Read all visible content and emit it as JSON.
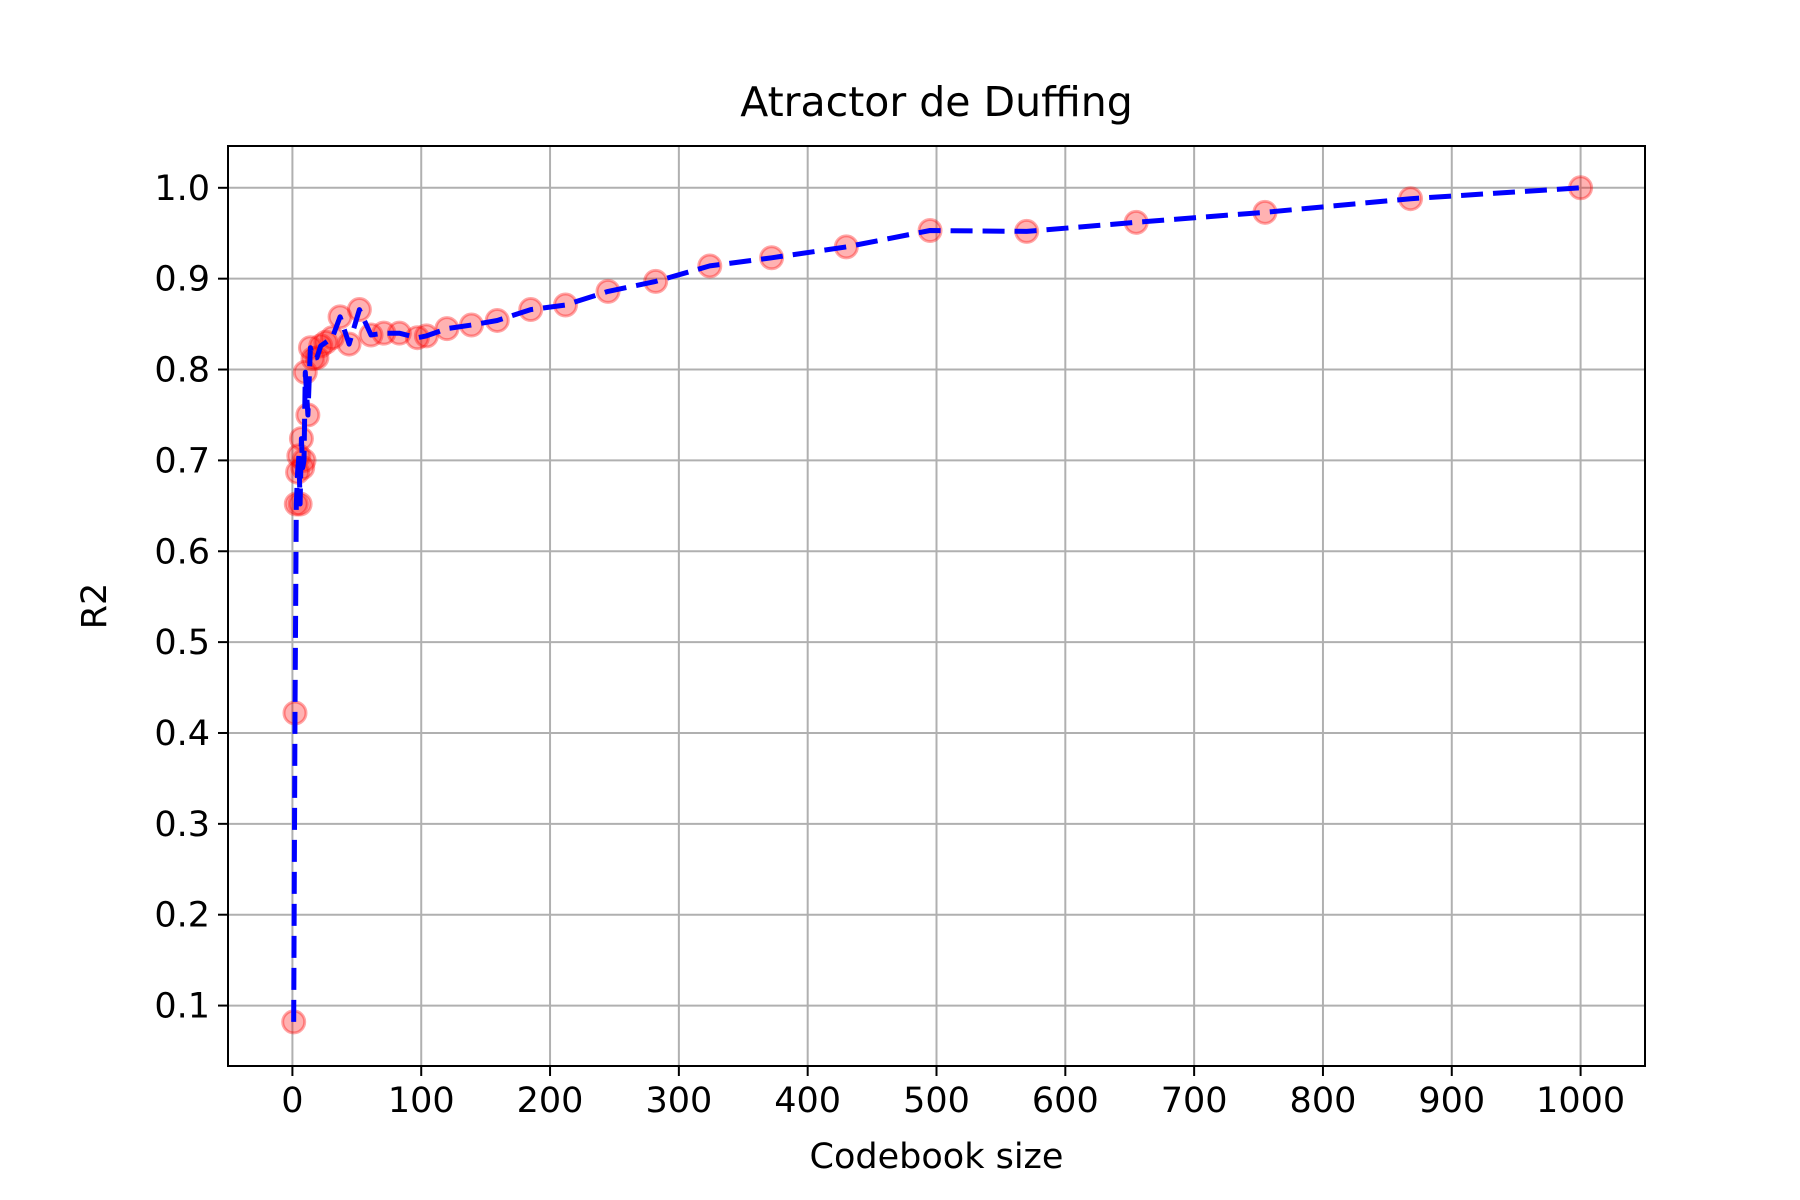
{
  "chart_data": {
    "type": "line",
    "title": "Atractor de Duffing",
    "xlabel": "Codebook size",
    "ylabel": "R2",
    "xlim": [
      -50,
      1050
    ],
    "ylim": [
      0.0335,
      1.046
    ],
    "xticks": [
      0,
      100,
      200,
      300,
      400,
      500,
      600,
      700,
      800,
      900,
      1000
    ],
    "yticks": [
      0.1,
      0.2,
      0.3,
      0.4,
      0.5,
      0.6,
      0.7,
      0.8,
      0.9,
      1.0
    ],
    "xtick_labels": [
      "0",
      "100",
      "200",
      "300",
      "400",
      "500",
      "600",
      "700",
      "800",
      "900",
      "1000"
    ],
    "ytick_labels": [
      "0.1",
      "0.2",
      "0.3",
      "0.4",
      "0.5",
      "0.6",
      "0.7",
      "0.8",
      "0.9",
      "1.0"
    ],
    "grid": true,
    "series": [
      {
        "style": "dashed line with circle markers",
        "line_color": "#0000ff",
        "marker_color": "#ff0000",
        "x": [
          1,
          2,
          3,
          4,
          5,
          6,
          7,
          8,
          9,
          10,
          12,
          14,
          16,
          19,
          22,
          26,
          31,
          37,
          44,
          52,
          61,
          71,
          83,
          97,
          104,
          120,
          139,
          159,
          185,
          212,
          245,
          282,
          324,
          372,
          430,
          495,
          570,
          655,
          755,
          868,
          1000
        ],
        "y": [
          0.082,
          0.422,
          0.652,
          0.687,
          0.705,
          0.652,
          0.724,
          0.692,
          0.7,
          0.797,
          0.75,
          0.824,
          0.812,
          0.813,
          0.826,
          0.83,
          0.835,
          0.858,
          0.828,
          0.866,
          0.838,
          0.84,
          0.84,
          0.835,
          0.837,
          0.845,
          0.849,
          0.854,
          0.866,
          0.871,
          0.886,
          0.897,
          0.914,
          0.923,
          0.935,
          0.953,
          0.952,
          0.962,
          0.973,
          0.988,
          1.0
        ]
      }
    ]
  }
}
